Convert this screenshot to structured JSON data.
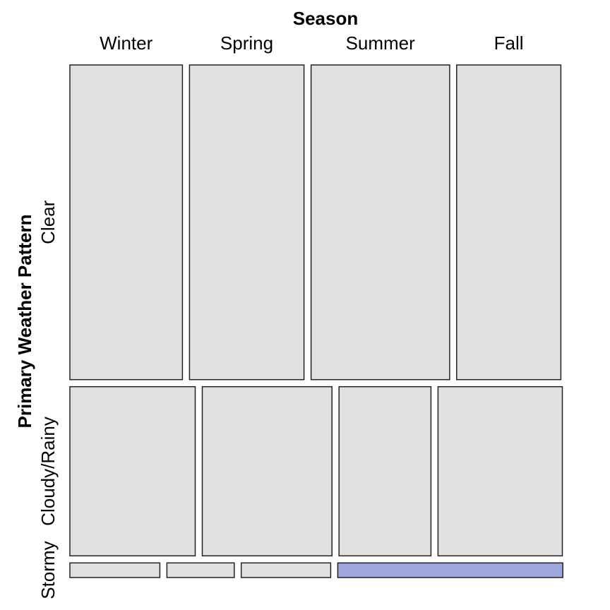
{
  "chart_data": {
    "type": "mosaic",
    "title": "",
    "xlabel": "Season",
    "ylabel": "Primary Weather Pattern",
    "x_categories": [
      "Winter",
      "Spring",
      "Summer",
      "Fall"
    ],
    "y_categories": [
      "Clear",
      "Cloudy/Rainy",
      "Stormy"
    ],
    "row_proportions": [
      0.6167,
      0.3315,
      0.0287
    ],
    "row_conditional_column_shares": [
      [
        0.229,
        0.233,
        0.282,
        0.212
      ],
      [
        0.255,
        0.264,
        0.187,
        0.253
      ],
      [
        0.183,
        0.137,
        0.182,
        0.458
      ]
    ],
    "colors": {
      "default_fill": "#e1e1e1",
      "highlight_fill": "#9ea6de",
      "border": "#222222"
    },
    "highlighted_cells": [
      {
        "row": "Stormy",
        "column": "Fall"
      }
    ]
  }
}
